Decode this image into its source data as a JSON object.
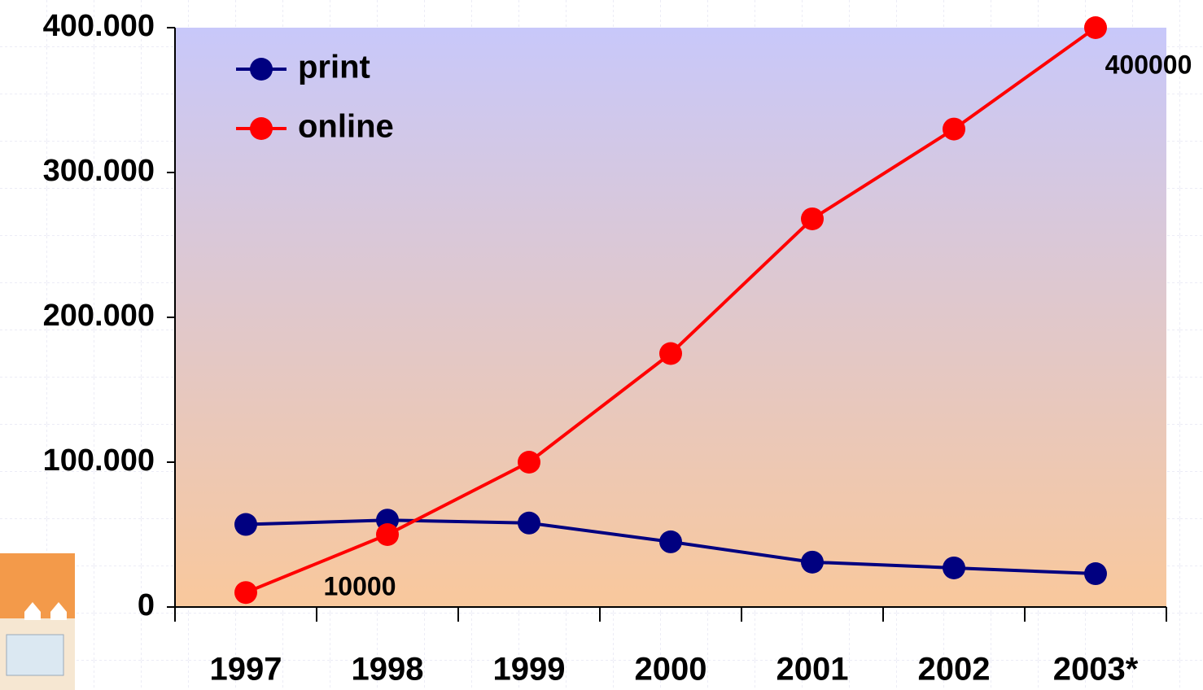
{
  "chart_data": {
    "type": "line",
    "categories": [
      "1997",
      "1998",
      "1999",
      "2000",
      "2001",
      "2002",
      "2003*"
    ],
    "series": [
      {
        "name": "print",
        "color": "#000080",
        "values": [
          57000,
          60000,
          58000,
          45000,
          31000,
          27000,
          23000
        ]
      },
      {
        "name": "online",
        "color": "#ff0000",
        "values": [
          10000,
          50000,
          100000,
          175000,
          268000,
          330000,
          400000
        ]
      }
    ],
    "data_labels": [
      {
        "series": 1,
        "index": 0
      },
      {
        "series": 1,
        "index": 6
      }
    ],
    "ylim": [
      0,
      400000
    ],
    "yticks": [
      0,
      {
        "value": 100000,
        "label": "100.000"
      },
      {
        "value": 200000,
        "label": "200.000"
      },
      {
        "value": 300000,
        "label": "300.000"
      },
      {
        "value": 400000,
        "label": "400.000"
      }
    ],
    "legend": "top-left"
  }
}
